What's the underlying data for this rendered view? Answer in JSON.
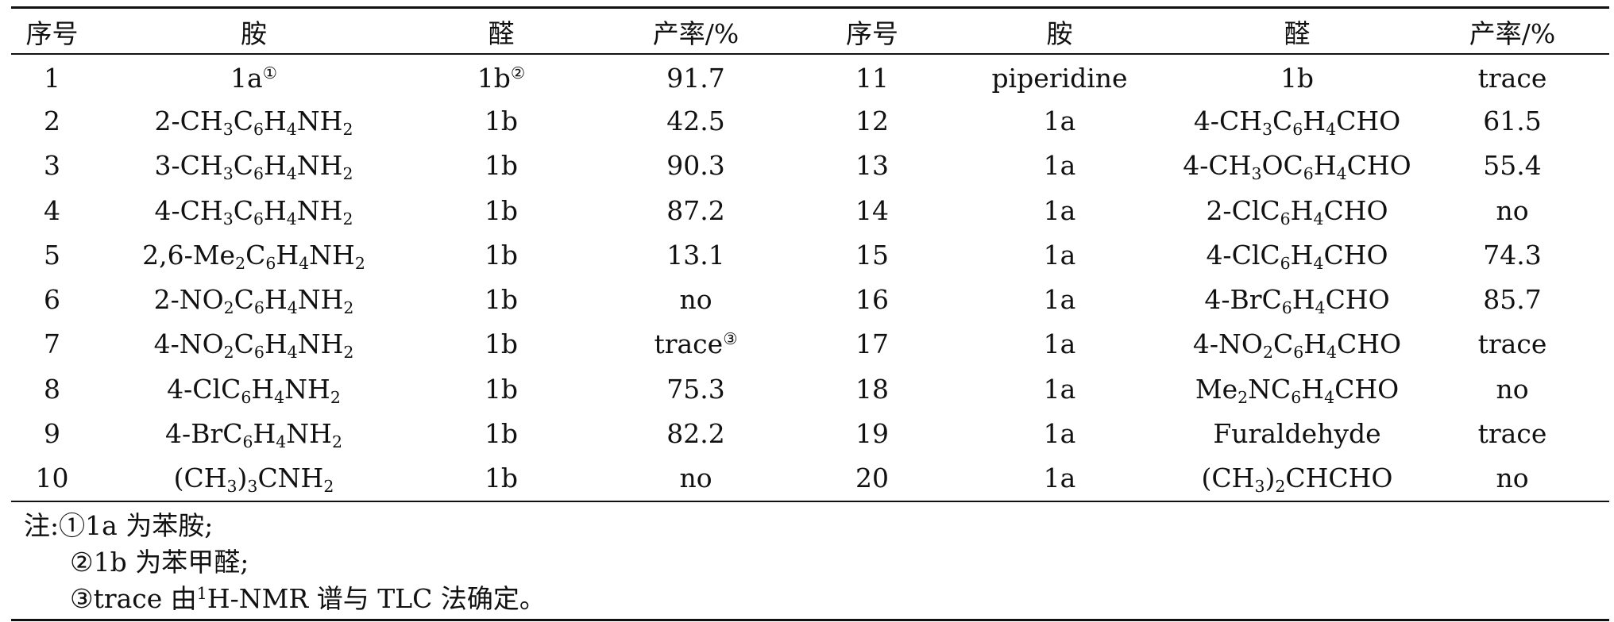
{
  "headers": [
    "序号",
    "胺",
    "醛",
    "产率/%",
    "序号",
    "胺",
    "醛",
    "产率/%"
  ],
  "rows": [
    {
      "left": {
        "no": "1",
        "amine": [
          {
            "t": "1a"
          },
          {
            "t": "①",
            "sup": true
          }
        ],
        "aldehyde": [
          {
            "t": "1b"
          },
          {
            "t": "②",
            "sup": true
          }
        ],
        "yield": [
          {
            "t": "91.7"
          }
        ]
      },
      "right": {
        "no": "11",
        "amine": [
          {
            "t": "piperidine"
          }
        ],
        "aldehyde": [
          {
            "t": "1b"
          }
        ],
        "yield": [
          {
            "t": "trace"
          }
        ]
      }
    },
    {
      "left": {
        "no": "2",
        "amine": [
          {
            "t": "2-CH"
          },
          {
            "t": "3",
            "sub": true
          },
          {
            "t": "C"
          },
          {
            "t": "6",
            "sub": true
          },
          {
            "t": "H"
          },
          {
            "t": "4",
            "sub": true
          },
          {
            "t": "NH"
          },
          {
            "t": "2",
            "sub": true
          }
        ],
        "aldehyde": [
          {
            "t": "1b"
          }
        ],
        "yield": [
          {
            "t": "42.5"
          }
        ]
      },
      "right": {
        "no": "12",
        "amine": [
          {
            "t": "1a"
          }
        ],
        "aldehyde": [
          {
            "t": "4-CH"
          },
          {
            "t": "3",
            "sub": true
          },
          {
            "t": "C"
          },
          {
            "t": "6",
            "sub": true
          },
          {
            "t": "H"
          },
          {
            "t": "4",
            "sub": true
          },
          {
            "t": "CHO"
          }
        ],
        "yield": [
          {
            "t": "61.5"
          }
        ]
      }
    },
    {
      "left": {
        "no": "3",
        "amine": [
          {
            "t": "3-CH"
          },
          {
            "t": "3",
            "sub": true
          },
          {
            "t": "C"
          },
          {
            "t": "6",
            "sub": true
          },
          {
            "t": "H"
          },
          {
            "t": "4",
            "sub": true
          },
          {
            "t": "NH"
          },
          {
            "t": "2",
            "sub": true
          }
        ],
        "aldehyde": [
          {
            "t": "1b"
          }
        ],
        "yield": [
          {
            "t": "90.3"
          }
        ]
      },
      "right": {
        "no": "13",
        "amine": [
          {
            "t": "1a"
          }
        ],
        "aldehyde": [
          {
            "t": "4-CH"
          },
          {
            "t": "3",
            "sub": true
          },
          {
            "t": "OC"
          },
          {
            "t": "6",
            "sub": true
          },
          {
            "t": "H"
          },
          {
            "t": "4",
            "sub": true
          },
          {
            "t": "CHO"
          }
        ],
        "yield": [
          {
            "t": "55.4"
          }
        ]
      }
    },
    {
      "left": {
        "no": "4",
        "amine": [
          {
            "t": "4-CH"
          },
          {
            "t": "3",
            "sub": true
          },
          {
            "t": "C"
          },
          {
            "t": "6",
            "sub": true
          },
          {
            "t": "H"
          },
          {
            "t": "4",
            "sub": true
          },
          {
            "t": "NH"
          },
          {
            "t": "2",
            "sub": true
          }
        ],
        "aldehyde": [
          {
            "t": "1b"
          }
        ],
        "yield": [
          {
            "t": "87.2"
          }
        ]
      },
      "right": {
        "no": "14",
        "amine": [
          {
            "t": "1a"
          }
        ],
        "aldehyde": [
          {
            "t": "2-ClC"
          },
          {
            "t": "6",
            "sub": true
          },
          {
            "t": "H"
          },
          {
            "t": "4",
            "sub": true
          },
          {
            "t": "CHO"
          }
        ],
        "yield": [
          {
            "t": "no"
          }
        ]
      }
    },
    {
      "left": {
        "no": "5",
        "amine": [
          {
            "t": "2,6-Me"
          },
          {
            "t": "2",
            "sub": true
          },
          {
            "t": "C"
          },
          {
            "t": "6",
            "sub": true
          },
          {
            "t": "H"
          },
          {
            "t": "4",
            "sub": true
          },
          {
            "t": "NH"
          },
          {
            "t": "2",
            "sub": true
          }
        ],
        "aldehyde": [
          {
            "t": "1b"
          }
        ],
        "yield": [
          {
            "t": "13.1"
          }
        ]
      },
      "right": {
        "no": "15",
        "amine": [
          {
            "t": "1a"
          }
        ],
        "aldehyde": [
          {
            "t": "4-ClC"
          },
          {
            "t": "6",
            "sub": true
          },
          {
            "t": "H"
          },
          {
            "t": "4",
            "sub": true
          },
          {
            "t": "CHO"
          }
        ],
        "yield": [
          {
            "t": "74.3"
          }
        ]
      }
    },
    {
      "left": {
        "no": "6",
        "amine": [
          {
            "t": "2-NO"
          },
          {
            "t": "2",
            "sub": true
          },
          {
            "t": "C"
          },
          {
            "t": "6",
            "sub": true
          },
          {
            "t": "H"
          },
          {
            "t": "4",
            "sub": true
          },
          {
            "t": "NH"
          },
          {
            "t": "2",
            "sub": true
          }
        ],
        "aldehyde": [
          {
            "t": "1b"
          }
        ],
        "yield": [
          {
            "t": "no"
          }
        ]
      },
      "right": {
        "no": "16",
        "amine": [
          {
            "t": "1a"
          }
        ],
        "aldehyde": [
          {
            "t": "4-BrC"
          },
          {
            "t": "6",
            "sub": true
          },
          {
            "t": "H"
          },
          {
            "t": "4",
            "sub": true
          },
          {
            "t": "CHO"
          }
        ],
        "yield": [
          {
            "t": "85.7"
          }
        ]
      }
    },
    {
      "left": {
        "no": "7",
        "amine": [
          {
            "t": "4-NO"
          },
          {
            "t": "2",
            "sub": true
          },
          {
            "t": "C"
          },
          {
            "t": "6",
            "sub": true
          },
          {
            "t": "H"
          },
          {
            "t": "4",
            "sub": true
          },
          {
            "t": "NH"
          },
          {
            "t": "2",
            "sub": true
          }
        ],
        "aldehyde": [
          {
            "t": "1b"
          }
        ],
        "yield": [
          {
            "t": "trace"
          },
          {
            "t": "③",
            "sup": true
          }
        ]
      },
      "right": {
        "no": "17",
        "amine": [
          {
            "t": "1a"
          }
        ],
        "aldehyde": [
          {
            "t": "4-NO"
          },
          {
            "t": "2",
            "sub": true
          },
          {
            "t": "C"
          },
          {
            "t": "6",
            "sub": true
          },
          {
            "t": "H"
          },
          {
            "t": "4",
            "sub": true
          },
          {
            "t": "CHO"
          }
        ],
        "yield": [
          {
            "t": "trace"
          }
        ]
      }
    },
    {
      "left": {
        "no": "8",
        "amine": [
          {
            "t": "4-ClC"
          },
          {
            "t": "6",
            "sub": true
          },
          {
            "t": "H"
          },
          {
            "t": "4",
            "sub": true
          },
          {
            "t": "NH"
          },
          {
            "t": "2",
            "sub": true
          }
        ],
        "aldehyde": [
          {
            "t": "1b"
          }
        ],
        "yield": [
          {
            "t": "75.3"
          }
        ]
      },
      "right": {
        "no": "18",
        "amine": [
          {
            "t": "1a"
          }
        ],
        "aldehyde": [
          {
            "t": "Me"
          },
          {
            "t": "2",
            "sub": true
          },
          {
            "t": "NC"
          },
          {
            "t": "6",
            "sub": true
          },
          {
            "t": "H"
          },
          {
            "t": "4",
            "sub": true
          },
          {
            "t": "CHO"
          }
        ],
        "yield": [
          {
            "t": "no"
          }
        ]
      }
    },
    {
      "left": {
        "no": "9",
        "amine": [
          {
            "t": "4-BrC"
          },
          {
            "t": "6",
            "sub": true
          },
          {
            "t": "H"
          },
          {
            "t": "4",
            "sub": true
          },
          {
            "t": "NH"
          },
          {
            "t": "2",
            "sub": true
          }
        ],
        "aldehyde": [
          {
            "t": "1b"
          }
        ],
        "yield": [
          {
            "t": "82.2"
          }
        ]
      },
      "right": {
        "no": "19",
        "amine": [
          {
            "t": "1a"
          }
        ],
        "aldehyde": [
          {
            "t": "Furaldehyde"
          }
        ],
        "yield": [
          {
            "t": "trace"
          }
        ]
      }
    },
    {
      "left": {
        "no": "10",
        "amine": [
          {
            "t": "(CH"
          },
          {
            "t": "3",
            "sub": true
          },
          {
            "t": ")"
          },
          {
            "t": "3",
            "sub": true
          },
          {
            "t": "CNH"
          },
          {
            "t": "2",
            "sub": true
          }
        ],
        "aldehyde": [
          {
            "t": "1b"
          }
        ],
        "yield": [
          {
            "t": "no"
          }
        ]
      },
      "right": {
        "no": "20",
        "amine": [
          {
            "t": "1a"
          }
        ],
        "aldehyde": [
          {
            "t": "(CH"
          },
          {
            "t": "3",
            "sub": true
          },
          {
            "t": ")"
          },
          {
            "t": "2",
            "sub": true
          },
          {
            "t": "CHCHO"
          }
        ],
        "yield": [
          {
            "t": "no"
          }
        ]
      }
    }
  ],
  "notes": [
    [
      {
        "t": "注:①1a 为苯胺;"
      }
    ],
    [
      {
        "t": "②1b 为苯甲醛;"
      }
    ],
    [
      {
        "t": "③trace 由"
      },
      {
        "t": "1",
        "sup": true
      },
      {
        "t": "H-NMR 谱与 TLC 法确定。"
      }
    ]
  ]
}
